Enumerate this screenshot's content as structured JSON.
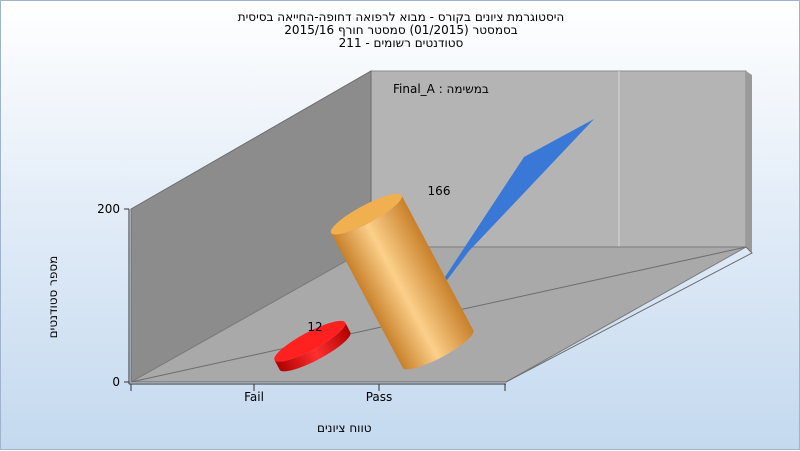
{
  "chart_data": {
    "type": "bar",
    "title_lines": [
      "היסטוגרמת ציונים בקורס - מבוא לרפואה דחופה-החייאה בסיסית",
      "בסמסטר  (01/2015)  סמסטר חורף 2015/16",
      "סטודנטים רשומים - 211"
    ],
    "xlabel": "טווח ציונים",
    "ylabel": "מספר סטודנטים",
    "legend_label": "במשימה : Final_A",
    "categories": [
      "Fail",
      "Pass"
    ],
    "values": [
      12,
      166
    ],
    "data_labels": [
      "12",
      "166"
    ],
    "y_ticks": [
      "0",
      "200"
    ],
    "ylim": [
      0,
      200
    ],
    "colors": {
      "fail": "#e00000",
      "pass": "#e8a040",
      "trend": "#3a78d8",
      "back_wall": "#b4b4b4",
      "left_wall": "#8c8c8c",
      "floor": "#a9a9a9"
    },
    "grid": false,
    "legend_position": "top-center"
  }
}
